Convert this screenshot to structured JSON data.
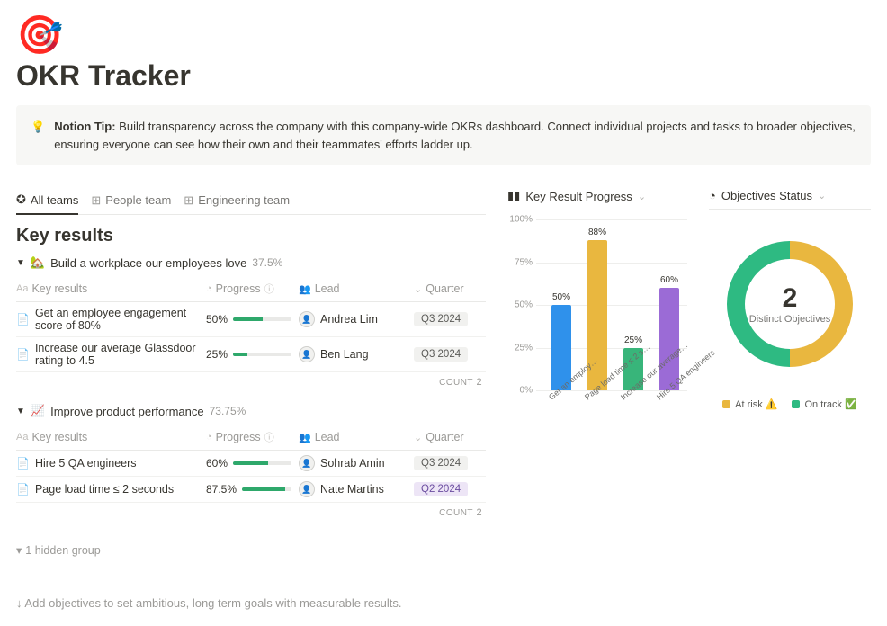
{
  "page": {
    "icon": "🎯",
    "title": "OKR Tracker",
    "tip_label": "Notion Tip:",
    "tip_text": "Build transparency across the company with this company-wide OKRs dashboard. Connect individual projects and tasks to broader objectives, ensuring everyone can see how their own and their teammates' efforts ladder up."
  },
  "tabs": {
    "all": "All teams",
    "people": "People team",
    "eng": "Engineering team"
  },
  "section_title": "Key results",
  "columns": {
    "kr": "Key results",
    "progress": "Progress",
    "lead": "Lead",
    "quarter": "Quarter"
  },
  "groups": [
    {
      "emoji": "🏡",
      "title": "Build a workplace our employees love",
      "pct": "37.5%",
      "rows": [
        {
          "kr": "Get an employee engagement score of 80%",
          "progress_label": "50%",
          "progress_pct": 50,
          "lead": "Andrea Lim",
          "quarter": "Q3 2024",
          "q_class": ""
        },
        {
          "kr": "Increase our average Glassdoor rating to 4.5",
          "progress_label": "25%",
          "progress_pct": 25,
          "lead": "Ben Lang",
          "quarter": "Q3 2024",
          "q_class": ""
        }
      ],
      "count_label": "COUNT",
      "count": "2"
    },
    {
      "emoji": "📈",
      "title": "Improve product performance",
      "pct": "73.75%",
      "rows": [
        {
          "kr": "Hire 5 QA engineers",
          "progress_label": "60%",
          "progress_pct": 60,
          "lead": "Sohrab Amin",
          "quarter": "Q3 2024",
          "q_class": ""
        },
        {
          "kr": "Page load time ≤ 2 seconds",
          "progress_label": "87.5%",
          "progress_pct": 87.5,
          "lead": "Nate Martins",
          "quarter": "Q2 2024",
          "q_class": "q2"
        }
      ],
      "count_label": "COUNT",
      "count": "2"
    }
  ],
  "hidden_group": "1 hidden group",
  "footer_hint": "↓ Add objectives to set ambitious, long term goals with measurable results.",
  "bar_chart": {
    "title": "Key Result Progress",
    "y_ticks": [
      "0%",
      "25%",
      "50%",
      "75%",
      "100%"
    ],
    "bars": [
      {
        "label": "Get an employ…",
        "value_label": "50%",
        "value": 50,
        "color": "#2f91eb"
      },
      {
        "label": "Page load time ≤ 2 s…",
        "value_label": "88%",
        "value": 88,
        "color": "#e9b73f"
      },
      {
        "label": "Increase our average…",
        "value_label": "25%",
        "value": 25,
        "color": "#38b57a"
      },
      {
        "label": "Hire 5 QA engineers",
        "value_label": "60%",
        "value": 60,
        "color": "#9b6bd6"
      }
    ]
  },
  "donut": {
    "title": "Objectives Status",
    "center_value": "2",
    "center_label": "Distinct Objectives",
    "slices": [
      {
        "color": "#e9b73f",
        "pct": 50
      },
      {
        "color": "#2eba82",
        "pct": 50
      }
    ],
    "legend": [
      {
        "label": "At risk ⚠️",
        "color": "#e9b73f"
      },
      {
        "label": "On track ✅",
        "color": "#2eba82"
      }
    ]
  }
}
